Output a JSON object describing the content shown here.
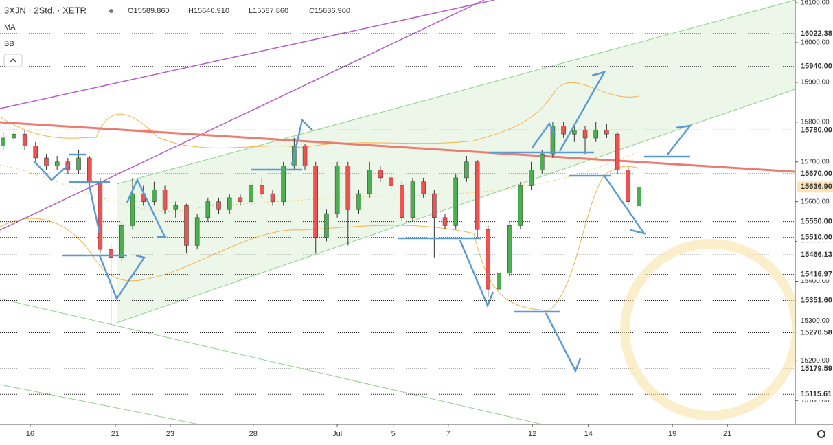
{
  "chart_data": {
    "type": "candlestick",
    "symbol": "3XJN · 2Std. · XETR",
    "ohlc_text": [
      "O15589.860",
      "H15640.910",
      "L15587.860",
      "C15636.900"
    ],
    "indicators": [
      "MA",
      "BB"
    ],
    "up_color": "#4caf50",
    "down_color": "#ef5350",
    "candles": [
      [
        15740,
        15775,
        15730,
        15760
      ],
      [
        15760,
        15785,
        15750,
        15770
      ],
      [
        15770,
        15780,
        15730,
        15740
      ],
      [
        15740,
        15750,
        15700,
        15710
      ],
      [
        15710,
        15720,
        15680,
        15690
      ],
      [
        15690,
        15715,
        15680,
        15700
      ],
      [
        15700,
        15710,
        15670,
        15680
      ],
      [
        15680,
        15730,
        15670,
        15710
      ],
      [
        15710,
        15715,
        15640,
        15650
      ],
      [
        15650,
        15660,
        15470,
        15480
      ],
      [
        15480,
        15495,
        15290,
        15460
      ],
      [
        15460,
        15550,
        15450,
        15540
      ],
      [
        15540,
        15660,
        15530,
        15620
      ],
      [
        15620,
        15640,
        15590,
        15600
      ],
      [
        15600,
        15650,
        15590,
        15630
      ],
      [
        15630,
        15640,
        15570,
        15580
      ],
      [
        15580,
        15600,
        15560,
        15590
      ],
      [
        15590,
        15595,
        15470,
        15490
      ],
      [
        15490,
        15570,
        15480,
        15560
      ],
      [
        15560,
        15610,
        15550,
        15600
      ],
      [
        15600,
        15610,
        15570,
        15580
      ],
      [
        15580,
        15620,
        15570,
        15610
      ],
      [
        15610,
        15620,
        15590,
        15600
      ],
      [
        15600,
        15650,
        15590,
        15640
      ],
      [
        15640,
        15660,
        15610,
        15620
      ],
      [
        15620,
        15630,
        15590,
        15600
      ],
      [
        15600,
        15700,
        15590,
        15690
      ],
      [
        15690,
        15760,
        15680,
        15740
      ],
      [
        15740,
        15745,
        15680,
        15690
      ],
      [
        15690,
        15700,
        15470,
        15510
      ],
      [
        15510,
        15580,
        15500,
        15570
      ],
      [
        15570,
        15700,
        15560,
        15690
      ],
      [
        15690,
        15700,
        15490,
        15580
      ],
      [
        15580,
        15630,
        15570,
        15620
      ],
      [
        15620,
        15700,
        15610,
        15680
      ],
      [
        15680,
        15690,
        15650,
        15660
      ],
      [
        15660,
        15670,
        15630,
        15640
      ],
      [
        15640,
        15650,
        15550,
        15560
      ],
      [
        15560,
        15660,
        15550,
        15650
      ],
      [
        15650,
        15660,
        15610,
        15620
      ],
      [
        15620,
        15630,
        15460,
        15560
      ],
      [
        15560,
        15570,
        15530,
        15540
      ],
      [
        15540,
        15670,
        15530,
        15660
      ],
      [
        15660,
        15715,
        15650,
        15700
      ],
      [
        15700,
        15705,
        15510,
        15530
      ],
      [
        15530,
        15540,
        15360,
        15380
      ],
      [
        15380,
        15430,
        15310,
        15420
      ],
      [
        15420,
        15550,
        15410,
        15540
      ],
      [
        15540,
        15650,
        15530,
        15640
      ],
      [
        15640,
        15700,
        15630,
        15680
      ],
      [
        15680,
        15730,
        15670,
        15720
      ],
      [
        15720,
        15800,
        15710,
        15790
      ],
      [
        15790,
        15800,
        15760,
        15770
      ],
      [
        15770,
        15795,
        15750,
        15780
      ],
      [
        15780,
        15790,
        15720,
        15760
      ],
      [
        15760,
        15800,
        15750,
        15780
      ],
      [
        15780,
        15795,
        15760,
        15770
      ],
      [
        15770,
        15775,
        15670,
        15680
      ],
      [
        15680,
        15690,
        15590,
        15600
      ],
      [
        15589.86,
        15640.91,
        15587.86,
        15636.9
      ]
    ],
    "xlim": [
      -0.3,
      73.5
    ],
    "xticks": [
      {
        "value": 2.5,
        "label": "16"
      },
      {
        "value": 10.4,
        "label": "21"
      },
      {
        "value": 15.5,
        "label": "23"
      },
      {
        "value": 23.2,
        "label": "28"
      },
      {
        "value": 31,
        "label": "Jul"
      },
      {
        "value": 36.2,
        "label": "5"
      },
      {
        "value": 41.3,
        "label": "7"
      },
      {
        "value": 49.1,
        "label": "12"
      },
      {
        "value": 54.3,
        "label": "14"
      },
      {
        "value": 62.1,
        "label": "19"
      },
      {
        "value": 67.2,
        "label": "21"
      }
    ],
    "ylim": [
      15040,
      16107
    ],
    "yticks": [
      {
        "value": 15100,
        "label": "15100.00"
      },
      {
        "value": 15200,
        "label": "15200.00"
      },
      {
        "value": 15300,
        "label": "15300.00"
      },
      {
        "value": 15400,
        "label": "15400.00"
      },
      {
        "value": 15500,
        "label": "15500.00"
      },
      {
        "value": 15600,
        "label": "15600.00"
      },
      {
        "value": 15700,
        "label": "15700.00"
      },
      {
        "value": 15800,
        "label": "15800.00"
      },
      {
        "value": 15900,
        "label": "15900.00"
      },
      {
        "value": 16000,
        "label": "16000.00"
      },
      {
        "value": 16100,
        "label": "16100.00"
      }
    ],
    "levels": [
      16022.38,
      {
        "value": 15940,
        "label": "15940.00"
      },
      {
        "value": 15780,
        "label": "15780.00"
      },
      {
        "value": 15670,
        "label": "15670.00"
      },
      {
        "value": 15550,
        "label": "15550.00"
      },
      {
        "value": 15510,
        "label": "15510.00"
      },
      15466.13,
      15416.97,
      {
        "value": 15351.6,
        "label": "15351.60"
      },
      15270.58,
      15179.59,
      15115.61
    ],
    "last_price": {
      "value": 15636.9,
      "label": "15636.90"
    }
  }
}
